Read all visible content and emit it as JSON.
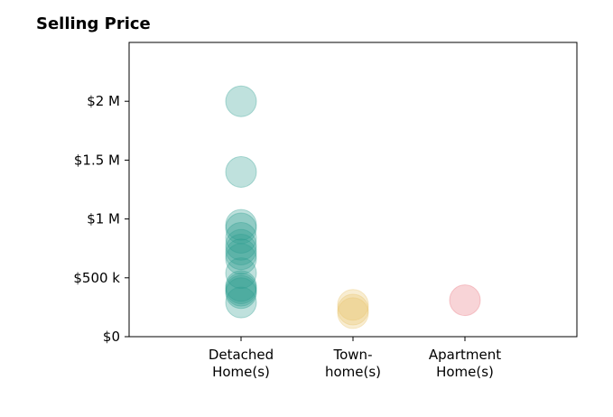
{
  "chart_data": {
    "type": "scatter",
    "title": "Selling Price",
    "xlabel": "",
    "ylabel": "",
    "categories": [
      {
        "line1": "Detached",
        "line2": "Home(s)"
      },
      {
        "line1": "Town-",
        "line2": "home(s)"
      },
      {
        "line1": "Apartment",
        "line2": "Home(s)"
      }
    ],
    "xlim": [
      -1,
      3
    ],
    "ylim": [
      0,
      2500000
    ],
    "y_ticks": [
      {
        "value": 0,
        "label": "$0"
      },
      {
        "value": 500000,
        "label": "$500 k"
      },
      {
        "value": 1000000,
        "label": "$1 M"
      },
      {
        "value": 1500000,
        "label": "$1.5 M"
      },
      {
        "value": 2000000,
        "label": "$2 M"
      }
    ],
    "grid": false,
    "series": [
      {
        "category_index": 0,
        "color": "#2a9d8f",
        "values": [
          2000000,
          1400000,
          950000,
          920000,
          840000,
          780000,
          740000,
          700000,
          660000,
          540000,
          430000,
          410000,
          390000,
          370000,
          290000
        ]
      },
      {
        "category_index": 1,
        "color": "#e9c46a",
        "values": [
          270000,
          230000,
          200000
        ]
      },
      {
        "category_index": 2,
        "color": "#e76f7a",
        "values": [
          310000
        ]
      }
    ]
  }
}
